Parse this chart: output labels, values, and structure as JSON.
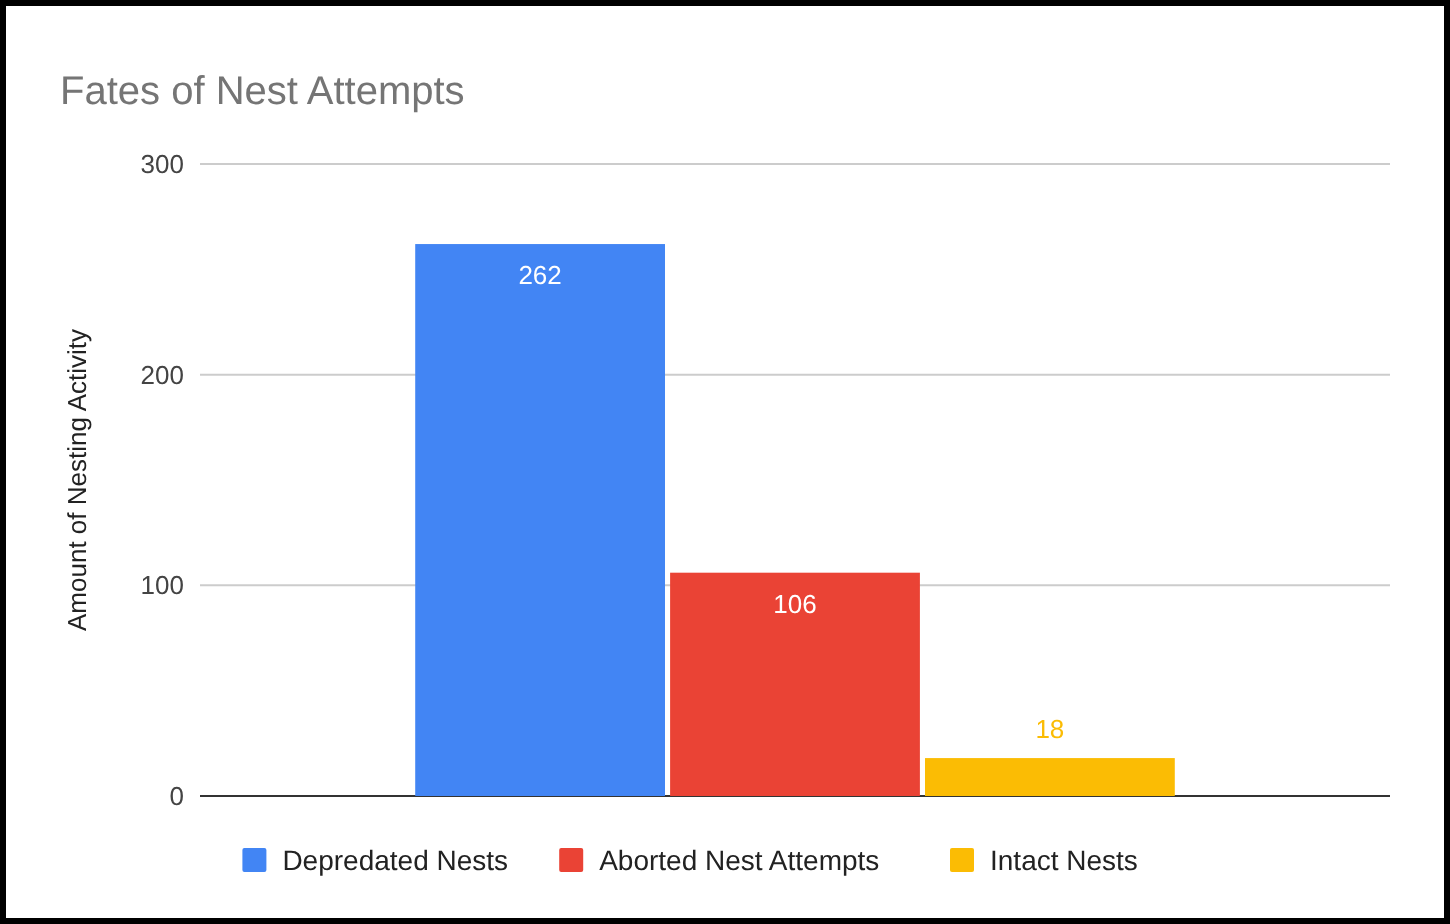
{
  "chart_data": {
    "type": "bar",
    "title": "Fates of Nest Attempts",
    "ylabel": "Amount of Nesting Activity",
    "categories": [
      null
    ],
    "series": [
      {
        "name": "Depredated Nests",
        "color": "#4285f4",
        "values": [
          262
        ]
      },
      {
        "name": "Aborted Nest Attempts",
        "color": "#ea4335",
        "values": [
          106
        ]
      },
      {
        "name": "Intact Nests",
        "color": "#fbbc04",
        "values": [
          18
        ]
      }
    ],
    "ylim": [
      0,
      300
    ],
    "yticks": [
      0,
      100,
      200,
      300
    ],
    "grid": "y",
    "legend": "bottom",
    "data_labels": true
  }
}
